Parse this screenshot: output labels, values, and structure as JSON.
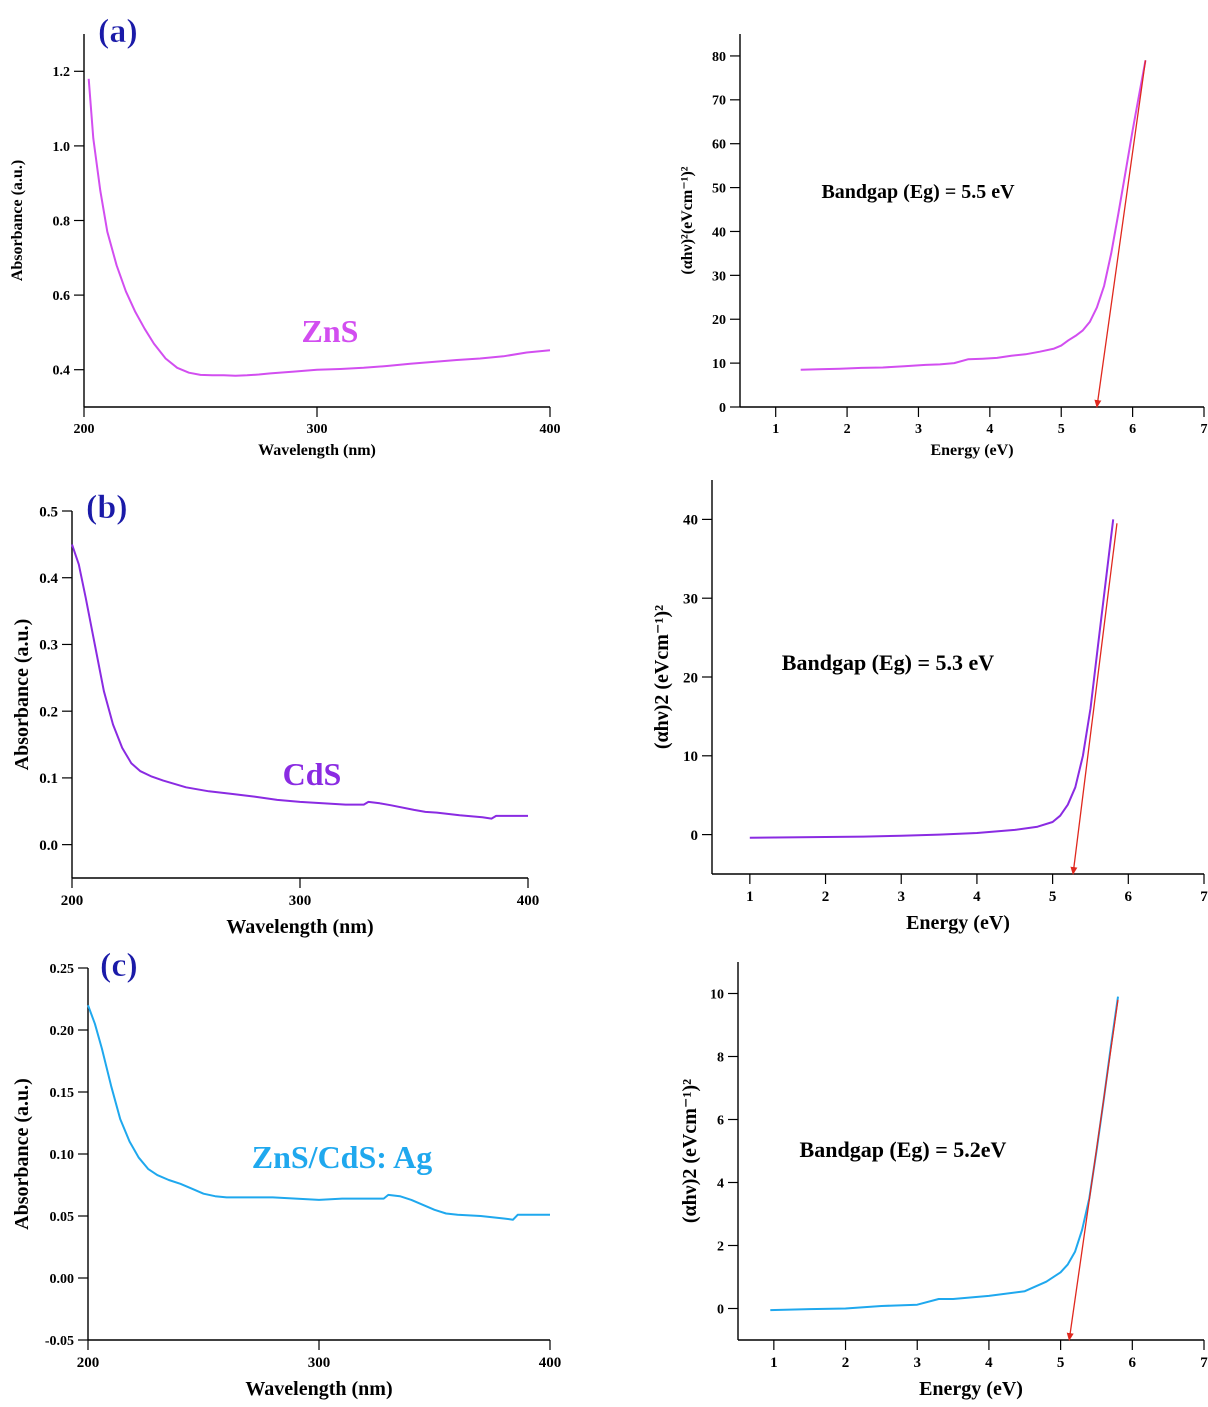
{
  "chart_data": [
    {
      "id": "a-abs",
      "type": "line",
      "panel_label": "(a)",
      "xlabel": "Wavelength (nm)",
      "ylabel": "Absorbance (a.u.)",
      "xlim": [
        200,
        400
      ],
      "ylim": [
        0.3,
        1.3
      ],
      "xticks": [
        200,
        300,
        400
      ],
      "yticks": [
        0.4,
        0.6,
        0.8,
        1.0,
        1.2
      ],
      "ytick_labels": [
        "0.4",
        "0.6",
        "0.8",
        "1.0",
        "1.2"
      ],
      "series": [
        {
          "name": "ZnS",
          "color": "#d24ef0",
          "x": [
            202,
            204,
            207,
            210,
            214,
            218,
            222,
            226,
            230,
            235,
            240,
            245,
            250,
            255,
            260,
            265,
            270,
            275,
            280,
            290,
            300,
            310,
            320,
            330,
            340,
            350,
            360,
            370,
            380,
            390,
            400
          ],
          "y": [
            1.18,
            1.02,
            0.88,
            0.77,
            0.68,
            0.61,
            0.555,
            0.51,
            0.47,
            0.43,
            0.405,
            0.392,
            0.386,
            0.385,
            0.385,
            0.384,
            0.385,
            0.387,
            0.39,
            0.395,
            0.4,
            0.402,
            0.405,
            0.41,
            0.416,
            0.421,
            0.426,
            0.43,
            0.436,
            0.446,
            0.452
          ]
        }
      ],
      "annotations": [
        {
          "text": "ZnS",
          "color": "#d24ef0"
        }
      ]
    },
    {
      "id": "a-tauc",
      "type": "line",
      "xlabel": "Energy (eV)",
      "ylabel": "(αhν)²(eVcm⁻¹)²",
      "xlim": [
        0.5,
        7
      ],
      "ylim": [
        0,
        85
      ],
      "xticks": [
        1,
        2,
        3,
        4,
        5,
        6,
        7
      ],
      "yticks": [
        0,
        10,
        20,
        30,
        40,
        50,
        60,
        70,
        80
      ],
      "ytick_labels": [
        "0",
        "10",
        "20",
        "30",
        "40",
        "50",
        "60",
        "70",
        "80"
      ],
      "series": [
        {
          "color": "#d24ef0",
          "x": [
            1.35,
            1.6,
            1.9,
            2.2,
            2.5,
            2.8,
            3.1,
            3.3,
            3.5,
            3.7,
            3.9,
            4.1,
            4.3,
            4.5,
            4.7,
            4.9,
            5.0,
            5.1,
            5.2,
            5.3,
            5.4,
            5.5,
            5.6,
            5.7,
            5.8,
            5.9,
            6.0,
            6.1,
            6.18
          ],
          "y": [
            8.5,
            8.6,
            8.7,
            8.9,
            9.0,
            9.3,
            9.6,
            9.7,
            10.0,
            10.9,
            11.0,
            11.2,
            11.7,
            12.0,
            12.6,
            13.3,
            14.0,
            15.2,
            16.2,
            17.4,
            19.4,
            22.7,
            27.6,
            35.0,
            44.0,
            53.5,
            63.0,
            72.0,
            79.0
          ]
        }
      ],
      "fit_line": {
        "color": "#e0281e",
        "x1": 6.18,
        "y1": 79.0,
        "x2": 5.5,
        "y2": 0
      },
      "annotations": [
        {
          "text": "Bandgap (Eg) = 5.5 eV",
          "color": "#000000"
        }
      ]
    },
    {
      "id": "b-abs",
      "type": "line",
      "panel_label": "(b)",
      "xlabel": "Wavelength (nm)",
      "ylabel": "Absorbance (a.u.)",
      "xlim": [
        200,
        400
      ],
      "ylim": [
        -0.05,
        0.5
      ],
      "xticks": [
        200,
        300,
        400
      ],
      "yticks": [
        0.0,
        0.1,
        0.2,
        0.3,
        0.4,
        0.5
      ],
      "ytick_labels": [
        "0.0",
        "0.1",
        "0.2",
        "0.3",
        "0.4",
        "0.5"
      ],
      "series": [
        {
          "name": "CdS",
          "color": "#8a2be2",
          "x": [
            200,
            203,
            206,
            210,
            214,
            218,
            222,
            226,
            230,
            235,
            240,
            250,
            260,
            270,
            280,
            290,
            300,
            310,
            320,
            328,
            330,
            335,
            340,
            350,
            355,
            360,
            370,
            380,
            384,
            386,
            390,
            400
          ],
          "y": [
            0.45,
            0.42,
            0.37,
            0.3,
            0.23,
            0.18,
            0.145,
            0.122,
            0.11,
            0.102,
            0.096,
            0.086,
            0.08,
            0.076,
            0.072,
            0.067,
            0.064,
            0.062,
            0.06,
            0.06,
            0.064,
            0.062,
            0.059,
            0.052,
            0.049,
            0.048,
            0.044,
            0.041,
            0.039,
            0.043,
            0.043,
            0.043
          ]
        }
      ],
      "annotations": [
        {
          "text": "CdS",
          "color": "#8a2be2"
        }
      ]
    },
    {
      "id": "b-tauc",
      "type": "line",
      "xlabel": "Energy (eV)",
      "ylabel": "(αhν)2 (eVcm⁻¹)²",
      "xlim": [
        0.5,
        7
      ],
      "ylim": [
        -5,
        45
      ],
      "xticks": [
        1,
        2,
        3,
        4,
        5,
        6,
        7
      ],
      "yticks": [
        0,
        10,
        20,
        30,
        40
      ],
      "ytick_labels": [
        "0",
        "10",
        "20",
        "30",
        "40"
      ],
      "series": [
        {
          "color": "#8a2be2",
          "x": [
            1.0,
            1.5,
            2.0,
            2.5,
            3.0,
            3.5,
            4.0,
            4.5,
            4.8,
            5.0,
            5.1,
            5.2,
            5.3,
            5.4,
            5.5,
            5.6,
            5.7,
            5.8
          ],
          "y": [
            -0.4,
            -0.35,
            -0.3,
            -0.25,
            -0.15,
            0.0,
            0.2,
            0.6,
            1.0,
            1.6,
            2.4,
            3.8,
            6.0,
            10.0,
            16.0,
            24.0,
            32.0,
            40.0
          ]
        }
      ],
      "fit_line": {
        "color": "#e0281e",
        "x1": 5.85,
        "y1": 39.5,
        "x2": 5.27,
        "y2": -5
      },
      "annotations": [
        {
          "text": "Bandgap (Eg) = 5.3 eV",
          "color": "#000000"
        }
      ]
    },
    {
      "id": "c-abs",
      "type": "line",
      "panel_label": "(c)",
      "xlabel": "Wavelength (nm)",
      "ylabel": "Absorbance (a.u.)",
      "xlim": [
        200,
        400
      ],
      "ylim": [
        -0.05,
        0.25
      ],
      "xticks": [
        200,
        300,
        400
      ],
      "yticks": [
        -0.05,
        0.0,
        0.05,
        0.1,
        0.15,
        0.2,
        0.25
      ],
      "ytick_labels": [
        "-0.05",
        "0.00",
        "0.05",
        "0.10",
        "0.15",
        "0.20",
        "0.25"
      ],
      "series": [
        {
          "name": "ZnS/CdS: Ag",
          "color": "#1fa8ee",
          "x": [
            200,
            203,
            206,
            210,
            214,
            218,
            222,
            226,
            230,
            235,
            240,
            245,
            250,
            255,
            260,
            270,
            280,
            290,
            300,
            310,
            320,
            328,
            330,
            335,
            340,
            350,
            355,
            360,
            370,
            380,
            384,
            386,
            390,
            400
          ],
          "y": [
            0.22,
            0.205,
            0.185,
            0.155,
            0.128,
            0.11,
            0.097,
            0.088,
            0.083,
            0.079,
            0.076,
            0.072,
            0.068,
            0.066,
            0.065,
            0.065,
            0.065,
            0.064,
            0.063,
            0.064,
            0.064,
            0.064,
            0.067,
            0.066,
            0.063,
            0.055,
            0.052,
            0.051,
            0.05,
            0.048,
            0.047,
            0.051,
            0.051,
            0.051
          ]
        }
      ],
      "annotations": [
        {
          "text": "ZnS/CdS: Ag",
          "color": "#1fa8ee"
        }
      ]
    },
    {
      "id": "c-tauc",
      "type": "line",
      "xlabel": "Energy (eV)",
      "ylabel": "(αhν)2 (eVcm⁻¹)²",
      "xlim": [
        0.5,
        7
      ],
      "ylim": [
        -1,
        11
      ],
      "xticks": [
        1,
        2,
        3,
        4,
        5,
        6,
        7
      ],
      "yticks": [
        0,
        2,
        4,
        6,
        8,
        10
      ],
      "ytick_labels": [
        "0",
        "2",
        "4",
        "6",
        "8",
        "10"
      ],
      "series": [
        {
          "color": "#1fa8ee",
          "x": [
            0.95,
            1.5,
            2.0,
            2.5,
            3.0,
            3.3,
            3.5,
            4.0,
            4.5,
            4.8,
            5.0,
            5.1,
            5.2,
            5.3,
            5.4,
            5.5,
            5.6,
            5.7,
            5.8
          ],
          "y": [
            -0.05,
            -0.02,
            0.0,
            0.08,
            0.12,
            0.3,
            0.3,
            0.4,
            0.55,
            0.85,
            1.15,
            1.4,
            1.8,
            2.5,
            3.5,
            5.0,
            6.6,
            8.3,
            9.9
          ]
        }
      ],
      "fit_line": {
        "color": "#e0281e",
        "x1": 5.8,
        "y1": 9.8,
        "x2": 5.12,
        "y2": -1
      },
      "annotations": [
        {
          "text": "Bandgap (Eg) = 5.2eV",
          "color": "#000000"
        }
      ]
    }
  ]
}
